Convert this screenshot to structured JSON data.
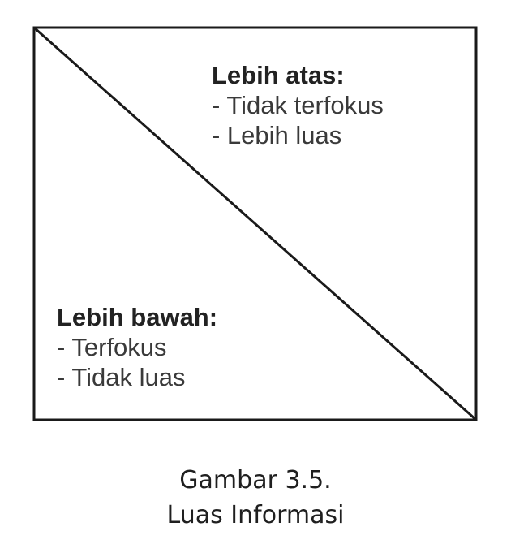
{
  "upper_region": {
    "heading": "Lebih atas:",
    "items": [
      "- Tidak terfokus",
      "- Lebih luas"
    ]
  },
  "lower_region": {
    "heading": "Lebih bawah:",
    "items": [
      "- Terfokus",
      "- Tidak luas"
    ]
  },
  "caption": {
    "line1": "Gambar 3.5.",
    "line2": "Luas Informasi"
  },
  "colors": {
    "stroke": "#1a1a1a",
    "text": "#333333"
  }
}
